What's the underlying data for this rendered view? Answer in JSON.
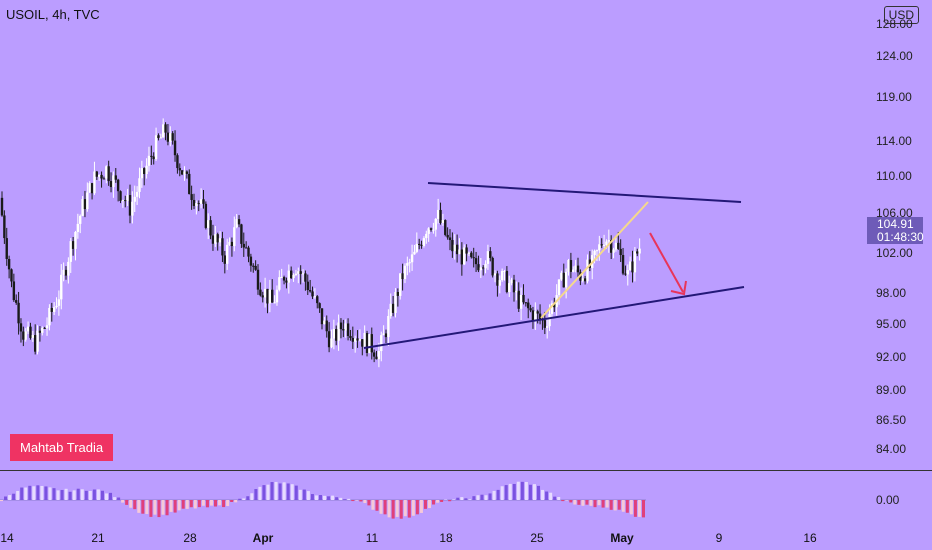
{
  "header": {
    "symbol_line": "USOIL, 4h, TVC",
    "currency": "USD"
  },
  "watermark": "Mahtab Tradia",
  "last_price": {
    "value": "104.91",
    "countdown": "01:48:30"
  },
  "y_axis": {
    "ticks": [
      "128.00",
      "124.00",
      "119.00",
      "114.00",
      "110.00",
      "106.00",
      "102.00",
      "98.00",
      "95.00",
      "92.00",
      "89.00",
      "86.50",
      "84.00"
    ],
    "indicator_tick": "0.00"
  },
  "x_axis": {
    "ticks": [
      {
        "label": "14",
        "bold": false
      },
      {
        "label": "21",
        "bold": false
      },
      {
        "label": "28",
        "bold": false
      },
      {
        "label": "Apr",
        "bold": true
      },
      {
        "label": "11",
        "bold": false
      },
      {
        "label": "18",
        "bold": false
      },
      {
        "label": "25",
        "bold": false
      },
      {
        "label": "May",
        "bold": true
      },
      {
        "label": "9",
        "bold": false
      },
      {
        "label": "16",
        "bold": false
      }
    ]
  },
  "chart_data": {
    "type": "candlestick",
    "symbol": "USOIL",
    "timeframe": "4h",
    "ylim": [
      82,
      130
    ],
    "price_path": [
      [
        "Mar 10",
        110
      ],
      [
        "Mar 11",
        101
      ],
      [
        "Mar 12",
        96
      ],
      [
        "Mar 13",
        95
      ],
      [
        "Mar 14",
        97
      ],
      [
        "Mar 15",
        100
      ],
      [
        "Mar 16",
        105
      ],
      [
        "Mar 17",
        109
      ],
      [
        "Mar 18",
        112
      ],
      [
        "Mar 19",
        113
      ],
      [
        "Mar 20",
        111
      ],
      [
        "Mar 21",
        109
      ],
      [
        "Mar 22",
        112
      ],
      [
        "Mar 23",
        115
      ],
      [
        "Mar 24",
        117
      ],
      [
        "Mar 25",
        114
      ],
      [
        "Mar 26",
        111
      ],
      [
        "Mar 27",
        109
      ],
      [
        "Mar 28",
        106
      ],
      [
        "Mar 29",
        104
      ],
      [
        "Mar 30",
        107
      ],
      [
        "Mar 31",
        104
      ],
      [
        "Apr 1",
        101
      ],
      [
        "Apr 2",
        99
      ],
      [
        "Apr 3",
        102
      ],
      [
        "Apr 4",
        103
      ],
      [
        "Apr 5",
        101
      ],
      [
        "Apr 6",
        98
      ],
      [
        "Apr 7",
        95
      ],
      [
        "Apr 8",
        97
      ],
      [
        "Apr 9",
        96
      ],
      [
        "Apr 10",
        95
      ],
      [
        "Apr 11",
        94
      ],
      [
        "Apr 12",
        98
      ],
      [
        "Apr 13",
        102
      ],
      [
        "Apr 14",
        104
      ],
      [
        "Apr 15",
        107
      ],
      [
        "Apr 16",
        108
      ],
      [
        "Apr 17",
        105
      ],
      [
        "Apr 18",
        104
      ],
      [
        "Apr 19",
        103
      ],
      [
        "Apr 20",
        104
      ],
      [
        "Apr 21",
        102
      ],
      [
        "Apr 22",
        101
      ],
      [
        "Apr 23",
        99
      ],
      [
        "Apr 24",
        98
      ],
      [
        "Apr 25",
        97
      ],
      [
        "Apr 26",
        100
      ],
      [
        "Apr 27",
        103
      ],
      [
        "Apr 28",
        102
      ],
      [
        "Apr 29",
        103
      ],
      [
        "Apr 30",
        106
      ],
      [
        "May 1",
        105
      ],
      [
        "May 2",
        102
      ],
      [
        "May 3",
        104.91
      ]
    ],
    "trendlines": [
      {
        "name": "upper",
        "from": [
          "Apr 16",
          109.5
        ],
        "to": [
          "May 8",
          108.0
        ]
      },
      {
        "name": "lower",
        "from": [
          "Apr 10",
          93.0
        ],
        "to": [
          "May 8",
          98.8
        ]
      },
      {
        "name": "inner-support",
        "from": [
          "Apr 25",
          96.0
        ],
        "to": [
          "May 3",
          107.5
        ]
      }
    ],
    "projection_arrow": {
      "from": [
        "May 3",
        105.5
      ],
      "to": [
        "May 6",
        98.0
      ]
    },
    "indicator": {
      "type": "histogram",
      "zero_label": "0.00"
    }
  }
}
